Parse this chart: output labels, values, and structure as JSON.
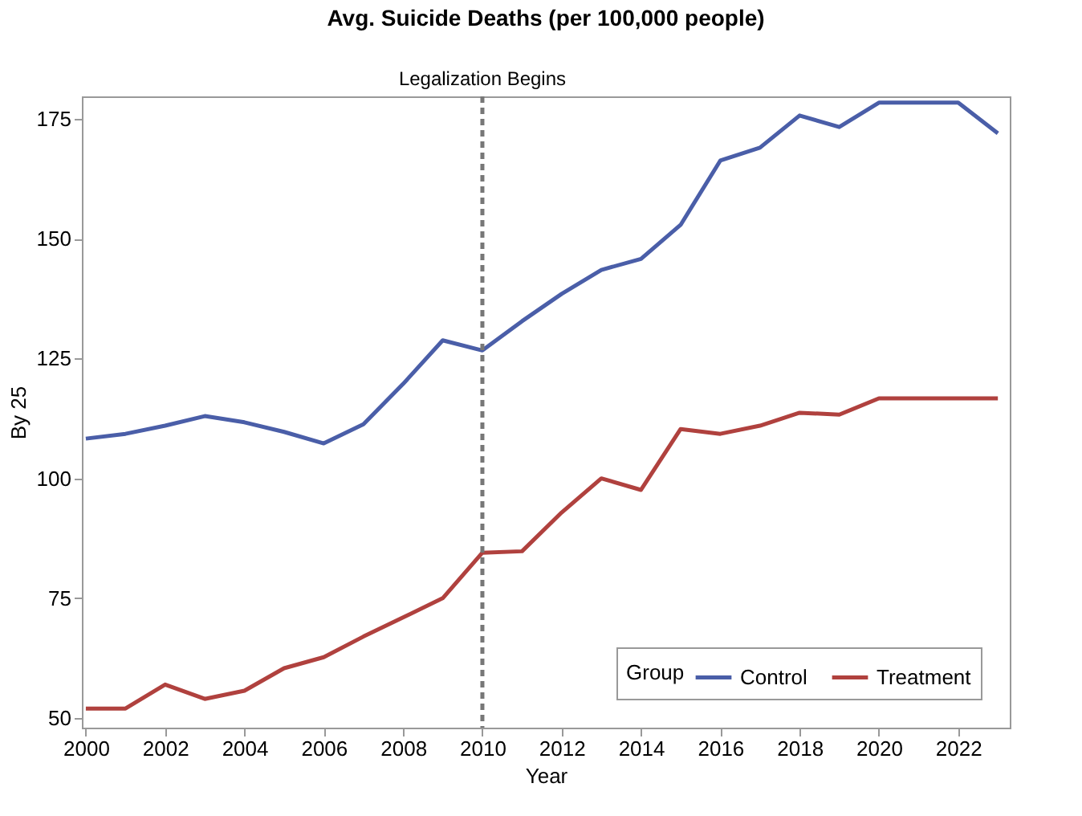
{
  "chart_data": {
    "type": "line",
    "title": "Avg. Suicide Deaths (per 100,000 people)",
    "xlabel": "Year",
    "ylabel": "By 25",
    "legend_title": "Group",
    "legend": "bottom right",
    "grid": false,
    "marker": "none",
    "line_style": "solid",
    "x": [
      2000,
      2001,
      2002,
      2003,
      2004,
      2005,
      2006,
      2007,
      2008,
      2009,
      2010,
      2011,
      2012,
      2013,
      2014,
      2015,
      2016,
      2017,
      2018,
      2019,
      2020,
      2021,
      2022,
      2023
    ],
    "series": [
      {
        "name": "Control",
        "color": "#4a5ea8",
        "values": [
          108.3,
          109.3,
          111,
          113,
          111.7,
          109.7,
          107.3,
          111.3,
          119.7,
          128.8,
          126.7,
          132.8,
          138.5,
          143.5,
          145.8,
          152.9,
          166.3,
          169,
          175.7,
          173.3,
          178.4,
          178.4,
          178.4,
          172
        ]
      },
      {
        "name": "Treatment",
        "color": "#b0413e",
        "values": [
          52,
          52,
          57,
          54,
          55.7,
          60.4,
          62.7,
          67,
          71,
          75,
          84.5,
          84.8,
          92.9,
          100,
          97.6,
          110.3,
          109.3,
          111,
          113.7,
          113.3,
          116.7,
          116.7,
          116.7,
          116.7
        ]
      }
    ],
    "xlim": [
      1999.9,
      2023.3
    ],
    "xticks": [
      2000,
      2002,
      2004,
      2006,
      2008,
      2010,
      2012,
      2014,
      2016,
      2018,
      2020,
      2022
    ],
    "ylim": [
      48,
      179.7
    ],
    "yticks": [
      50,
      75,
      100,
      125,
      150,
      175
    ],
    "ref_lines": [
      {
        "axis": "x",
        "value": 2010,
        "label": "Legalization Begins",
        "color": "#777777",
        "line_style": "dashed"
      }
    ]
  }
}
